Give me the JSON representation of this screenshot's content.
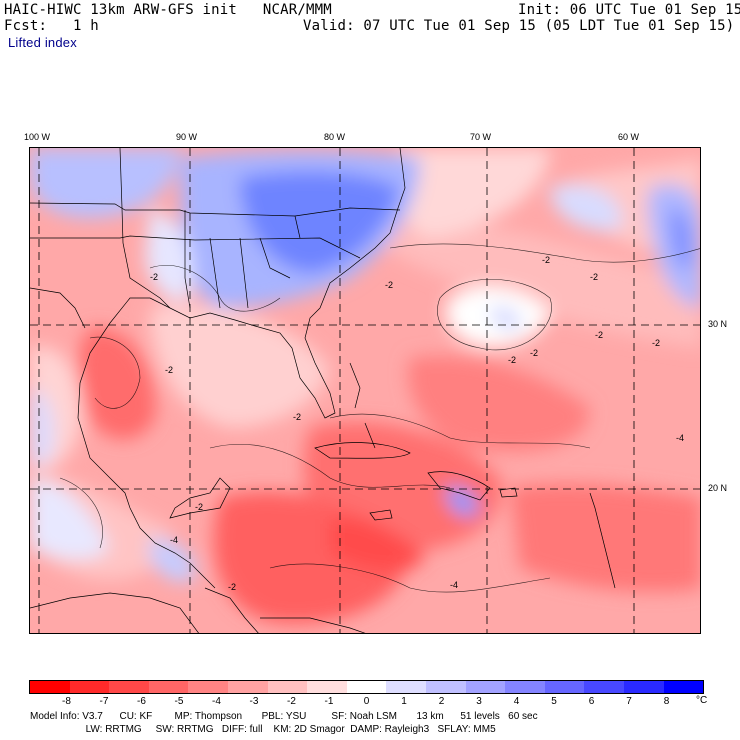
{
  "header": {
    "model_title": "HAIC-HIWC 13km ARW-GFS init   NCAR/MMM",
    "init": "Init: 06 UTC Tue 01 Sep 15",
    "fcst": "Fcst:   1 h",
    "valid": "Valid: 07 UTC Tue 01 Sep 15 (05 LDT Tue 01 Sep 15)",
    "field": "Lifted index"
  },
  "map": {
    "lon_labels": [
      {
        "text": "100 W"
      },
      {
        "text": "90 W"
      },
      {
        "text": "80 W"
      },
      {
        "text": "70 W"
      },
      {
        "text": "60 W"
      }
    ],
    "lat_labels": [
      {
        "text": "30 N"
      },
      {
        "text": "20 N"
      }
    ],
    "contour_labels": [
      "-2",
      "-4"
    ]
  },
  "colorbar": {
    "unit": "°C",
    "ticks": [
      "-8",
      "-7",
      "-6",
      "-5",
      "-4",
      "-3",
      "-2",
      "-1",
      "0",
      "1",
      "2",
      "3",
      "4",
      "5",
      "6",
      "7",
      "8"
    ],
    "colors": [
      "#ff0000",
      "#ff2a2a",
      "#ff4848",
      "#ff6666",
      "#ff8484",
      "#ffa2a2",
      "#ffc0c0",
      "#ffdede",
      "#ffffff",
      "#dedeff",
      "#c0c0ff",
      "#a2a2ff",
      "#8484ff",
      "#6666ff",
      "#4848ff",
      "#2a2aff",
      "#0000ff"
    ]
  },
  "model_info": {
    "line1": "Model Info: V3.7      CU: KF        MP: Thompson       PBL: YSU         SF: Noah LSM       13 km      51 levels   60 sec",
    "line2": "                    LW: RRTMG     SW: RRTMG   DIFF: full    KM: 2D Smagor  DAMP: Rayleigh3   SFLAY: MM5"
  }
}
